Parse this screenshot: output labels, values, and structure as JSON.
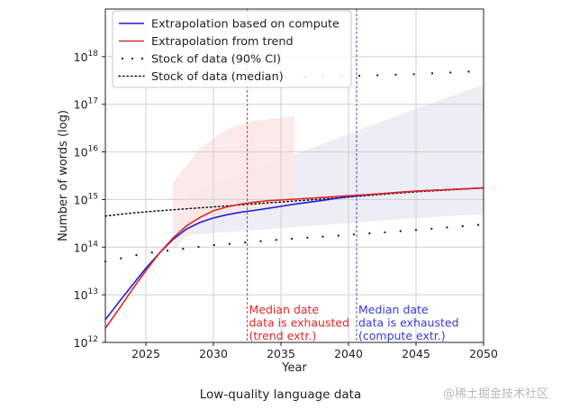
{
  "page_caption": "Low-quality language data",
  "watermark": "@稀土掘金技术社区",
  "colors": {
    "compute": "#1f1fd6",
    "trend": "#e12727",
    "stock": "#111111",
    "band_compute": "#e9e9f4",
    "band_trend": "#fbe6e6",
    "grid": "#cfcfcf"
  },
  "chart_data": {
    "type": "line",
    "xlabel": "Year",
    "ylabel": "Number of words (log)",
    "x_scale": "linear",
    "y_scale": "log",
    "xlim": [
      2022,
      2050
    ],
    "ylim": [
      1000000000000.0,
      1e+19
    ],
    "x_ticks": [
      2025,
      2030,
      2035,
      2040,
      2045,
      2050
    ],
    "x_tick_labels": [
      "2025",
      "2030",
      "2035",
      "2040",
      "2045",
      "2050"
    ],
    "y_ticks": [
      1000000000000.0,
      10000000000000.0,
      100000000000000.0,
      1000000000000000.0,
      1e+16,
      1e+17,
      1e+18
    ],
    "y_tick_labels": [
      {
        "base": "10",
        "exp": "12"
      },
      {
        "base": "10",
        "exp": "13"
      },
      {
        "base": "10",
        "exp": "14"
      },
      {
        "base": "10",
        "exp": "15"
      },
      {
        "base": "10",
        "exp": "16"
      },
      {
        "base": "10",
        "exp": "17"
      },
      {
        "base": "10",
        "exp": "18"
      }
    ],
    "grid": true,
    "legend_position": "top-left",
    "series": [
      {
        "name": "Extrapolation based on compute",
        "style": "solid",
        "color": "#1f1fd6",
        "x": [
          2022,
          2023,
          2024,
          2025,
          2026,
          2027,
          2028,
          2029,
          2030,
          2031,
          2032,
          2033,
          2034,
          2035,
          2036,
          2038,
          2040,
          2042,
          2045,
          2050
        ],
        "y": [
          3000000000000.0,
          7000000000000.0,
          16000000000000.0,
          36000000000000.0,
          75000000000000.0,
          145000000000000.0,
          240000000000000.0,
          330000000000000.0,
          410000000000000.0,
          480000000000000.0,
          540000000000000.0,
          590000000000000.0,
          650000000000000.0,
          720000000000000.0,
          800000000000000.0,
          950000000000000.0,
          1150000000000000.0,
          1300000000000000.0,
          1500000000000000.0,
          1750000000000000.0
        ]
      },
      {
        "name": "Extrapolation from trend",
        "style": "solid",
        "color": "#e12727",
        "x": [
          2022,
          2023,
          2024,
          2025,
          2026,
          2027,
          2028,
          2029,
          2030,
          2031,
          2032,
          2033,
          2034,
          2036,
          2038,
          2040,
          2042,
          2045,
          2050
        ],
        "y": [
          2000000000000.0,
          5000000000000.0,
          13000000000000.0,
          32000000000000.0,
          75000000000000.0,
          155000000000000.0,
          280000000000000.0,
          420000000000000.0,
          580000000000000.0,
          700000000000000.0,
          800000000000000.0,
          880000000000000.0,
          940000000000000.0,
          1020000000000000.0,
          1100000000000000.0,
          1200000000000000.0,
          1300000000000000.0,
          1500000000000000.0,
          1750000000000000.0
        ]
      },
      {
        "name": "Stock of data (90% CI)",
        "style": "sparse-dots",
        "color": "#111111",
        "bounds": [
          {
            "x": [
              2022,
              2025,
              2030,
              2035,
              2040,
              2045,
              2050
            ],
            "y": [
              50000000000000.0,
              75000000000000.0,
              110000000000000.0,
              145000000000000.0,
              180000000000000.0,
              230000000000000.0,
              300000000000000.0
            ]
          },
          {
            "x": [
              2030,
              2035,
              2040,
              2045,
              2050
            ],
            "y": [
              3.3e+17,
              3.6e+17,
              3.9e+17,
              4.3e+17,
              5e+17
            ]
          }
        ]
      },
      {
        "name": "Stock of data (median)",
        "style": "dotted",
        "color": "#111111",
        "x": [
          2022,
          2024,
          2026,
          2028,
          2030,
          2032,
          2034,
          2036,
          2038,
          2040,
          2042,
          2045,
          2050
        ],
        "y": [
          450000000000000.0,
          520000000000000.0,
          580000000000000.0,
          640000000000000.0,
          700000000000000.0,
          770000000000000.0,
          850000000000000.0,
          930000000000000.0,
          1020000000000000.0,
          1120000000000000.0,
          1250000000000000.0,
          1450000000000000.0,
          1750000000000000.0
        ]
      }
    ],
    "vlines": [
      {
        "x": 2032.5,
        "color": "#e12727",
        "style": "dashed",
        "label_lines": [
          "Median date",
          "data is exhausted",
          "(trend extr.)"
        ]
      },
      {
        "x": 2040.6,
        "color": "#3a3ad0",
        "style": "dashed",
        "label_lines": [
          "Median date",
          "data is exhausted",
          "(compute extr.)"
        ]
      }
    ]
  }
}
